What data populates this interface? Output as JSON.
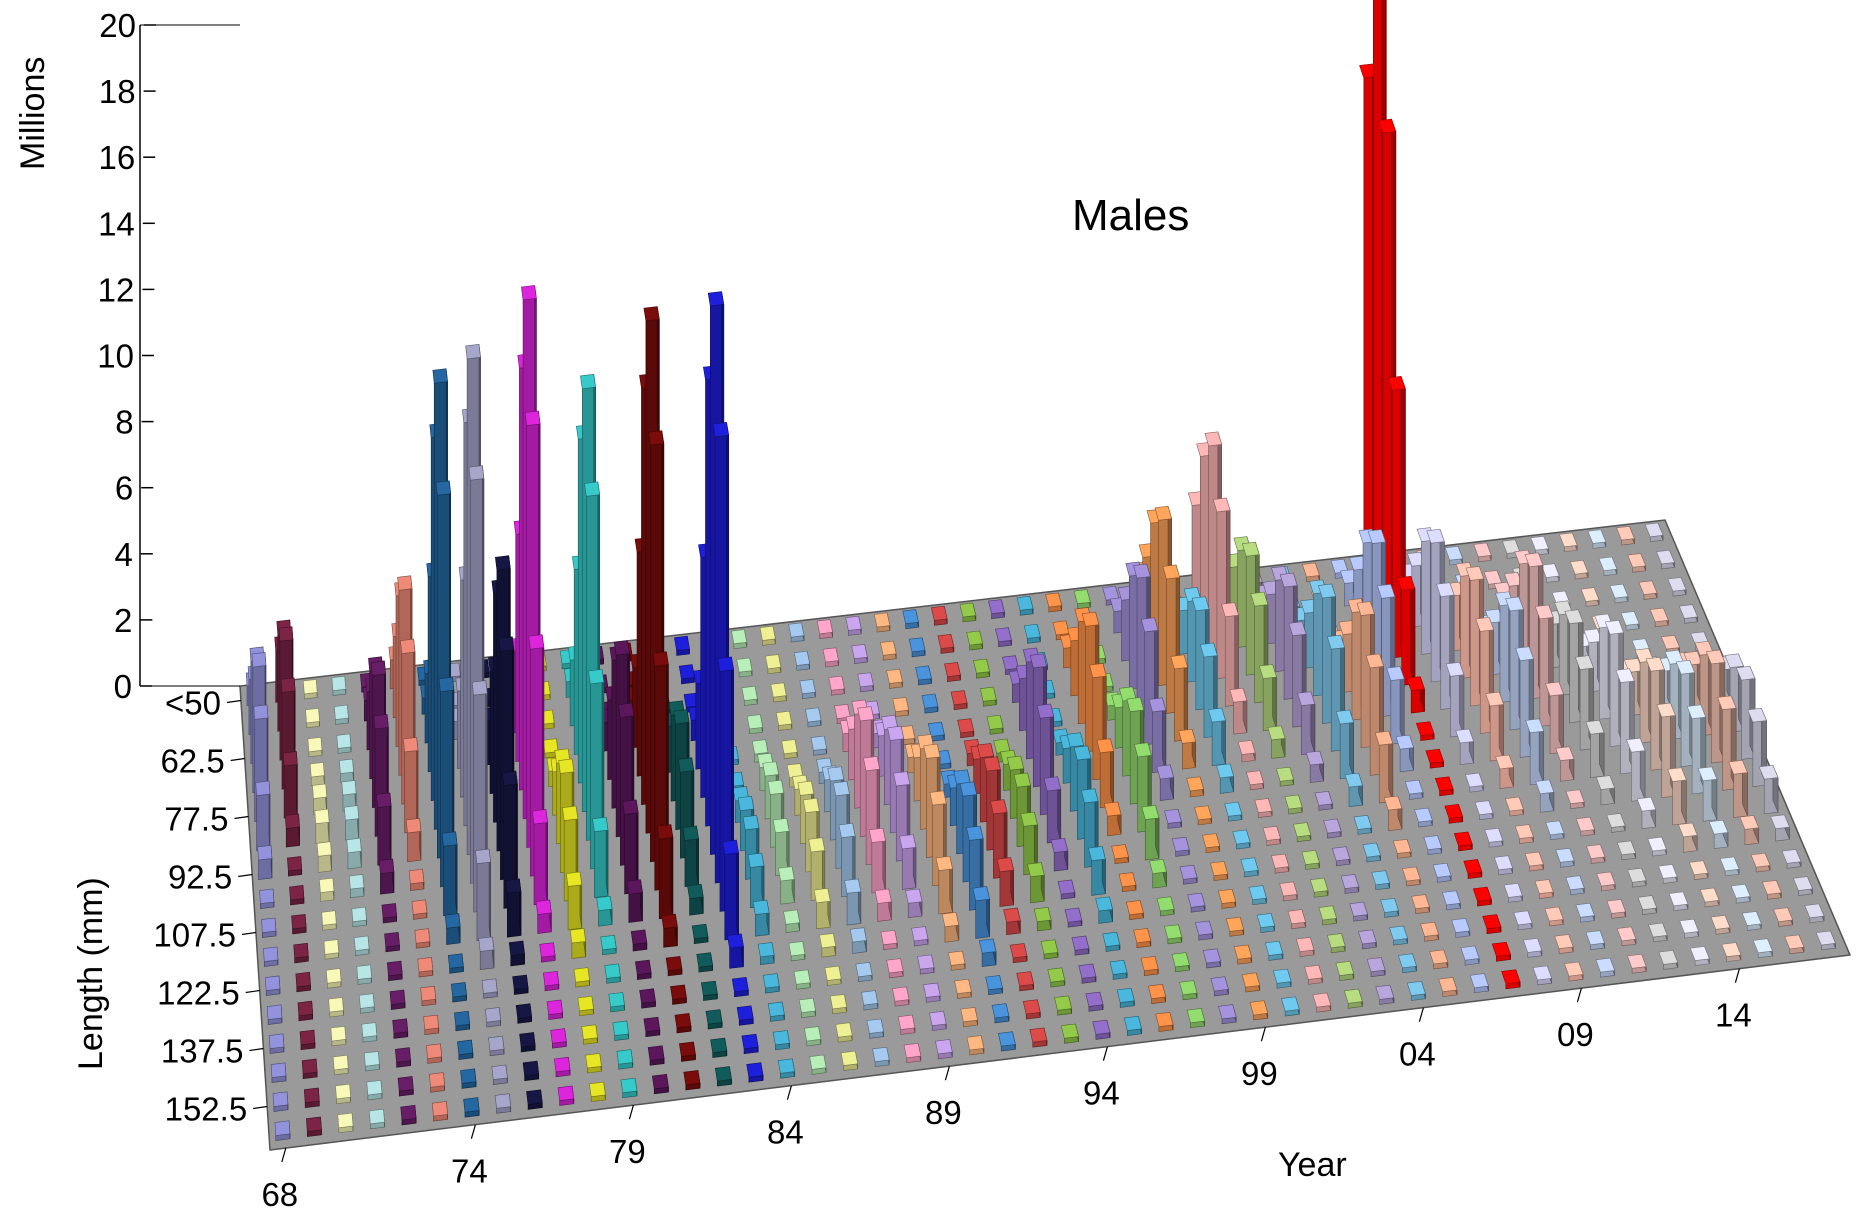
{
  "chart_data": {
    "type": "bar",
    "style": "3d-bar",
    "title": "Males",
    "xlabel": "Year",
    "ylabel": "Length (mm)",
    "zlabel": "Millions",
    "zlim": [
      0,
      20
    ],
    "z_ticks": [
      "0",
      "2",
      "4",
      "6",
      "8",
      "10",
      "12",
      "14",
      "16",
      "18",
      "20"
    ],
    "year_tick_labels": [
      "68",
      "74",
      "79",
      "84",
      "89",
      "94",
      "99",
      "04",
      "09",
      "14"
    ],
    "length_tick_labels": [
      "<50",
      "62.5",
      "77.5",
      "92.5",
      "107.5",
      "122.5",
      "137.5",
      "152.5"
    ],
    "years": [
      1968,
      1969,
      1970,
      1971,
      1972,
      1973,
      1974,
      1975,
      1976,
      1977,
      1978,
      1979,
      1980,
      1981,
      1982,
      1983,
      1984,
      1985,
      1986,
      1987,
      1988,
      1989,
      1990,
      1991,
      1992,
      1993,
      1994,
      1995,
      1996,
      1997,
      1998,
      1999,
      2000,
      2001,
      2002,
      2003,
      2004,
      2005,
      2006,
      2007,
      2008,
      2009,
      2010,
      2011,
      2012,
      2013,
      2014,
      2015,
      2016,
      2017
    ],
    "length_classes": [
      "<50",
      "55",
      "62.5",
      "70",
      "77.5",
      "85",
      "92.5",
      "100",
      "107.5",
      "115",
      "122.5",
      "130",
      "137.5",
      "145",
      "152.5",
      "160"
    ],
    "series_colors": [
      "#8080c0",
      "#6b1f3c",
      "#d8d8a0",
      "#a0c8c8",
      "#5a1a5a",
      "#d07868",
      "#1f5a8c",
      "#9090b0",
      "#14143c",
      "#c020c0",
      "#c8c820",
      "#30b0b0",
      "#501450",
      "#6a0a0a",
      "#0f4f4f",
      "#1a1ac0",
      "#40a0c0",
      "#a0d0a0",
      "#d0d080",
      "#90b0d0",
      "#e090b0",
      "#b090d0",
      "#e0a070",
      "#4080c0",
      "#c04040",
      "#80b040",
      "#8060b0",
      "#40a0c0",
      "#e08040",
      "#80c060",
      "#9080c0",
      "#e09050",
      "#60b0d0",
      "#e0a0a0",
      "#a0c070",
      "#a090c0",
      "#70b0d0",
      "#e0a080",
      "#a0b0e0",
      "#ff0000",
      "#c0c0e0",
      "#f0b0a0",
      "#b0c0e0",
      "#e0b0b0",
      "#c0c0c0",
      "#d0d0e0",
      "#e0c0b0",
      "#c0d0e0",
      "#e0b0a0",
      "#c0c0d0"
    ],
    "peaks_millions": [
      3.8,
      3.6,
      0.6,
      0.6,
      4.0,
      5.6,
      13.5,
      15.0,
      8.5,
      15.7,
      3.0,
      12.8,
      5.5,
      15.5,
      3.2,
      16.6,
      1.5,
      1.6,
      1.8,
      2.2,
      3.5,
      2.8,
      3.0,
      2.6,
      2.4,
      1.8,
      3.6,
      2.4,
      3.8,
      2.8,
      4.2,
      5.0,
      3.0,
      6.2,
      3.6,
      3.4,
      3.8,
      4.0,
      4.4,
      18.5,
      4.2,
      3.8,
      3.6,
      4.0,
      3.0,
      3.4,
      3.0,
      2.8,
      3.0,
      2.4
    ],
    "peak_length_index": [
      3,
      2,
      5,
      5,
      4,
      3,
      5,
      6,
      6,
      5,
      7,
      5,
      6,
      6,
      6,
      7,
      8,
      7,
      8,
      8,
      7,
      7,
      8,
      9,
      8,
      8,
      6,
      8,
      5,
      7,
      4,
      3,
      4,
      2,
      3,
      4,
      5,
      6,
      4,
      1,
      4,
      5,
      6,
      5,
      6,
      7,
      8,
      8,
      8,
      8
    ]
  }
}
